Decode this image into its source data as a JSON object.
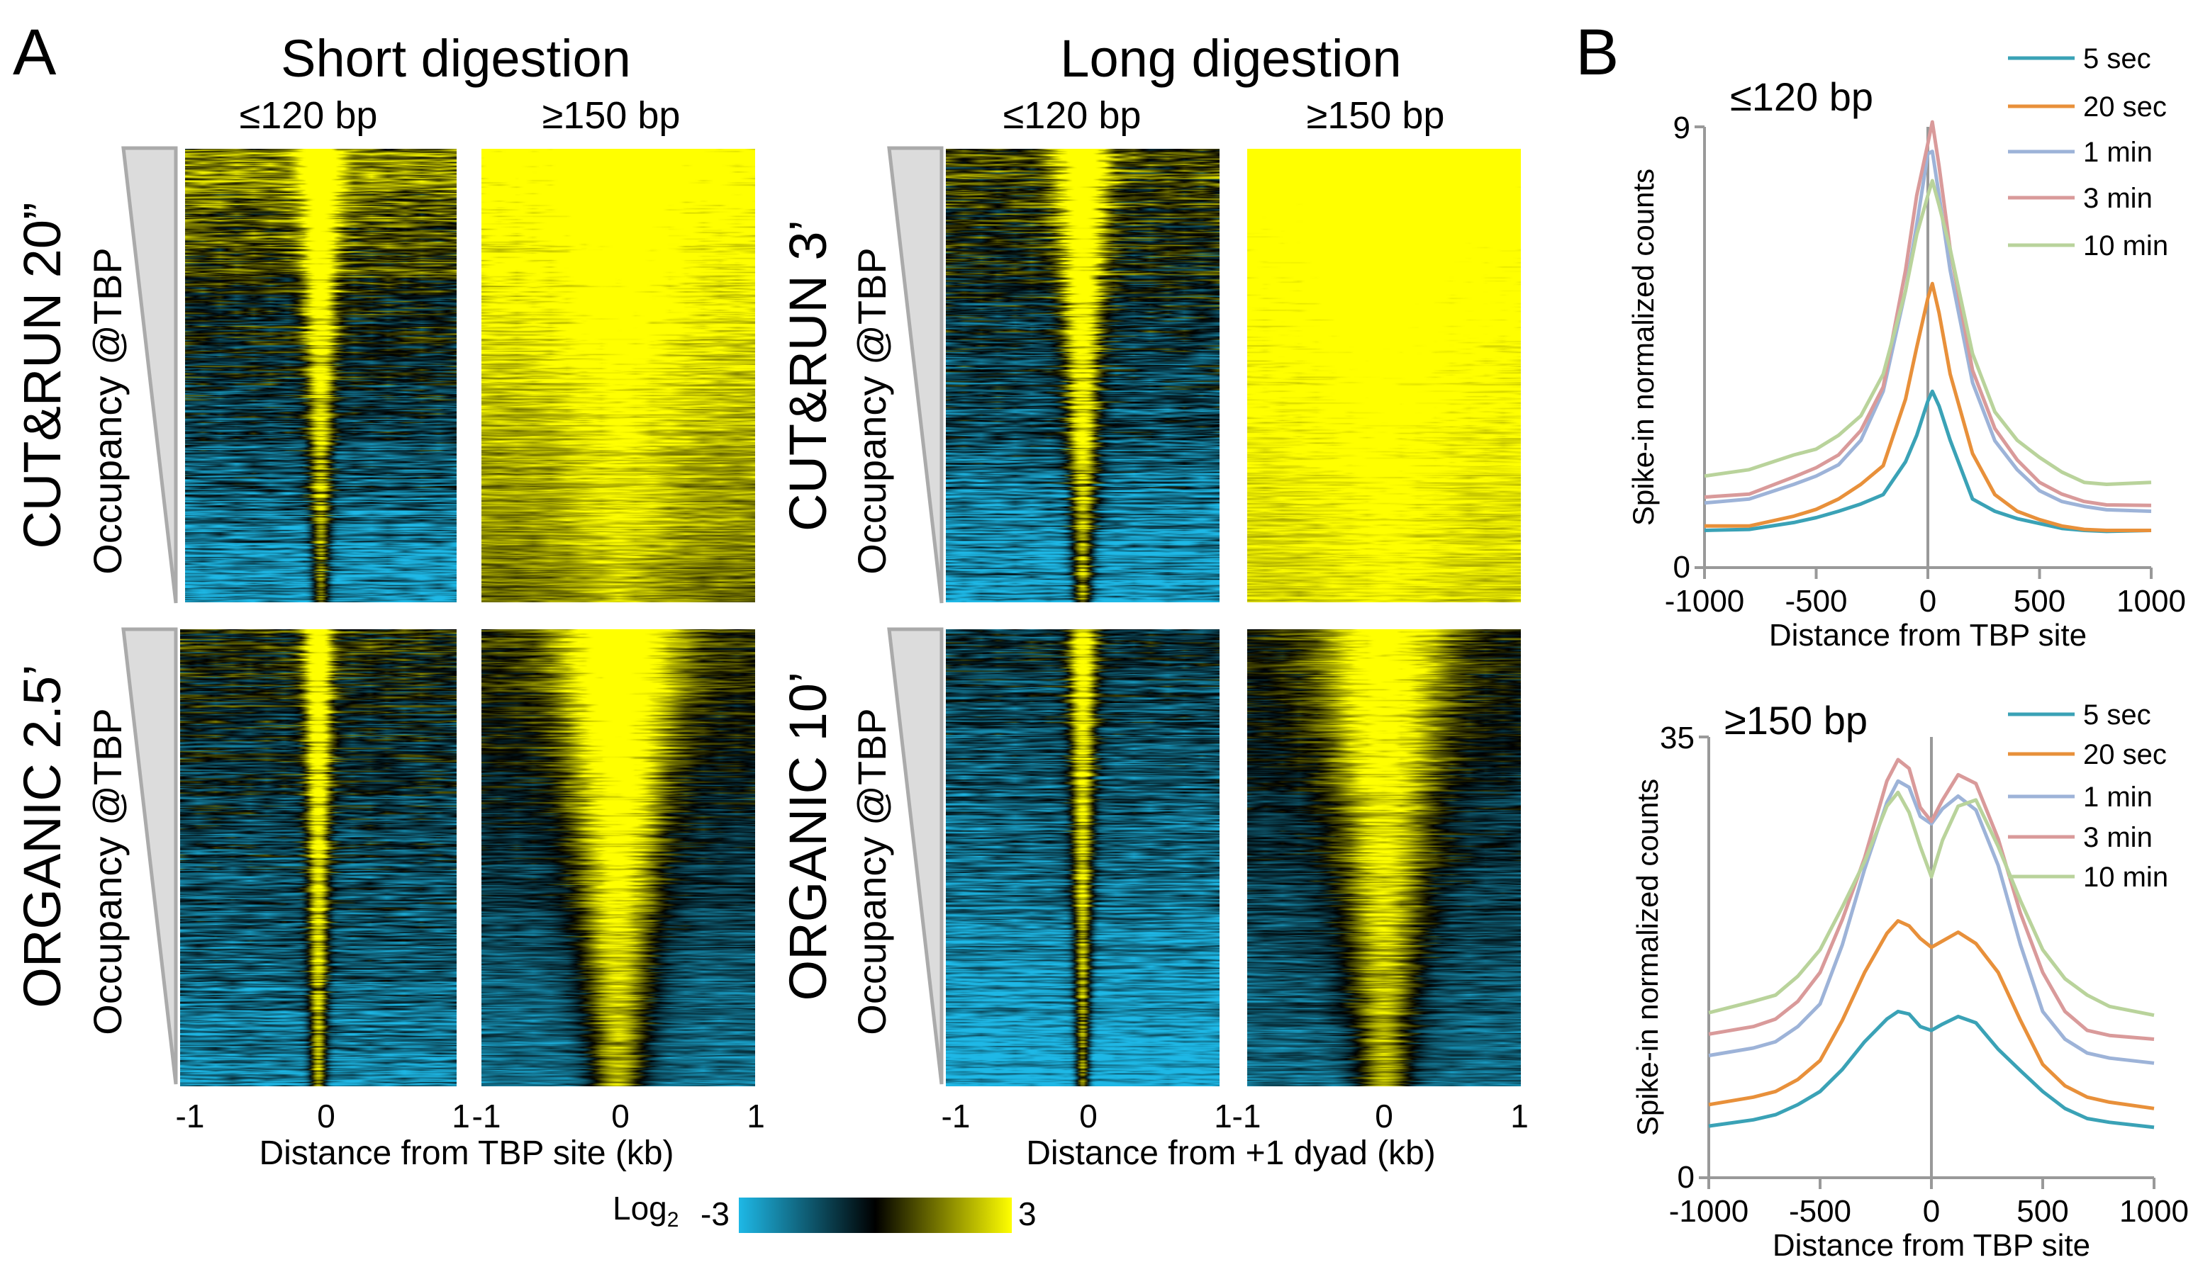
{
  "panel_a": {
    "letter": "A",
    "groups": [
      {
        "title": "Short digestion",
        "cols": [
          "≤120 bp",
          "≥150 bp"
        ],
        "axis_title": "Distance from TBP site (kb)"
      },
      {
        "title": "Long digestion",
        "cols": [
          "≤120 bp",
          "≥150 bp"
        ],
        "axis_title": "Distance from +1 dyad (kb)"
      }
    ],
    "rows": [
      {
        "left_label": "CUT&RUN 20”",
        "left_sub": "Occupancy @TBP",
        "right_label": "CUT&RUN 3’",
        "right_sub": "Occupancy @TBP"
      },
      {
        "left_label": "ORGANIC 2.5’",
        "left_sub": "Occupancy @TBP",
        "right_label": "ORGANIC 10’",
        "right_sub": "Occupancy @TBP"
      }
    ],
    "x_ticks": [
      "-1",
      "0",
      "1"
    ],
    "colorbar": {
      "label": "Log",
      "label_sub": "2",
      "min_label": "-3",
      "max_label": "3",
      "range": [
        -3,
        3
      ],
      "colors": {
        "low": "#1eb8e6",
        "mid": "#000000",
        "high": "#ffff00"
      }
    }
  },
  "panel_b": {
    "letter": "B"
  },
  "chart_data": [
    {
      "type": "line",
      "title": "≤120 bp",
      "xlabel": "Distance from TBP site",
      "ylabel": "Spike-in normalized counts",
      "xlim": [
        -1000,
        1000
      ],
      "ylim": [
        0,
        9
      ],
      "x_ticks": [
        "-1000",
        "-500",
        "0",
        "500",
        "1000"
      ],
      "y_ticks": [
        "0",
        "9"
      ],
      "legend_position": "top-right",
      "grid": false,
      "x": [
        -1000,
        -800,
        -600,
        -500,
        -400,
        -300,
        -200,
        -100,
        -50,
        0,
        20,
        50,
        100,
        200,
        300,
        400,
        500,
        600,
        700,
        800,
        1000
      ],
      "series": [
        {
          "name": "5 sec",
          "color": "#3aa2b6",
          "values": [
            0.76,
            0.78,
            0.92,
            1.02,
            1.15,
            1.3,
            1.49,
            2.16,
            2.7,
            3.4,
            3.6,
            3.3,
            2.6,
            1.4,
            1.15,
            1.0,
            0.9,
            0.8,
            0.76,
            0.74,
            0.76
          ]
        },
        {
          "name": "20 sec",
          "color": "#e8903a",
          "values": [
            0.85,
            0.85,
            1.05,
            1.19,
            1.4,
            1.7,
            2.08,
            3.44,
            4.5,
            5.5,
            5.8,
            5.2,
            3.95,
            2.33,
            1.49,
            1.15,
            0.98,
            0.85,
            0.78,
            0.76,
            0.76
          ]
        },
        {
          "name": "1 min",
          "color": "#9db3d8",
          "values": [
            1.32,
            1.4,
            1.7,
            1.87,
            2.1,
            2.6,
            3.6,
            5.65,
            7.0,
            8.45,
            8.5,
            7.6,
            6.07,
            3.78,
            2.59,
            2.0,
            1.57,
            1.35,
            1.25,
            1.18,
            1.15
          ]
        },
        {
          "name": "3 min",
          "color": "#d99a9a",
          "values": [
            1.44,
            1.5,
            1.85,
            2.04,
            2.3,
            2.8,
            3.69,
            6.07,
            7.6,
            8.66,
            9.1,
            8.2,
            6.5,
            4.03,
            2.84,
            2.2,
            1.74,
            1.5,
            1.35,
            1.28,
            1.27
          ]
        },
        {
          "name": "10 min",
          "color": "#b9d39b",
          "values": [
            1.87,
            2.0,
            2.3,
            2.42,
            2.7,
            3.1,
            3.95,
            5.65,
            6.8,
            7.6,
            7.9,
            7.4,
            6.5,
            4.37,
            3.18,
            2.6,
            2.25,
            1.95,
            1.74,
            1.7,
            1.74
          ]
        }
      ]
    },
    {
      "type": "line",
      "title": "≥150 bp",
      "xlabel": "Distance from TBP site",
      "ylabel": "Spike-in normalized counts",
      "xlim": [
        -1000,
        1000
      ],
      "ylim": [
        0,
        35
      ],
      "x_ticks": [
        "-1000",
        "-500",
        "0",
        "500",
        "1000"
      ],
      "y_ticks": [
        "0",
        "35"
      ],
      "legend_position": "top-right",
      "grid": false,
      "x": [
        -1000,
        -800,
        -700,
        -600,
        -500,
        -400,
        -300,
        -200,
        -150,
        -100,
        -50,
        0,
        50,
        120,
        200,
        300,
        400,
        500,
        600,
        700,
        800,
        1000
      ],
      "series": [
        {
          "name": "5 sec",
          "color": "#3aa2b6",
          "values": [
            4.1,
            4.6,
            5.0,
            5.8,
            6.85,
            8.6,
            10.8,
            12.6,
            13.2,
            13.0,
            12.0,
            11.7,
            12.2,
            12.8,
            12.3,
            10.2,
            8.5,
            6.85,
            5.5,
            4.7,
            4.4,
            4.0
          ]
        },
        {
          "name": "20 sec",
          "color": "#e8903a",
          "values": [
            5.8,
            6.4,
            6.85,
            7.8,
            9.3,
            12.5,
            16.3,
            19.4,
            20.4,
            20.0,
            19.0,
            18.3,
            18.8,
            19.5,
            18.6,
            16.3,
            12.5,
            9.0,
            7.3,
            6.4,
            6.0,
            5.5
          ]
        },
        {
          "name": "1 min",
          "color": "#9db3d8",
          "values": [
            9.7,
            10.3,
            10.8,
            12.0,
            13.8,
            18.5,
            24.5,
            29.8,
            31.5,
            31.0,
            28.7,
            28.1,
            29.3,
            30.3,
            29.2,
            24.8,
            18.5,
            13.2,
            11.0,
            9.9,
            9.5,
            9.1
          ]
        },
        {
          "name": "3 min",
          "color": "#d99a9a",
          "values": [
            11.4,
            12.0,
            12.6,
            14.0,
            16.3,
            20.5,
            25.4,
            31.5,
            33.2,
            32.5,
            29.4,
            28.3,
            30.0,
            32.0,
            31.3,
            26.9,
            21.0,
            16.3,
            13.2,
            11.7,
            11.3,
            11.0
          ]
        },
        {
          "name": "10 min",
          "color": "#b9d39b",
          "values": [
            13.1,
            14.0,
            14.5,
            16.0,
            18.1,
            21.5,
            25.1,
            29.5,
            30.6,
            29.0,
            26.3,
            23.9,
            26.8,
            29.5,
            30.0,
            26.3,
            22.0,
            18.1,
            15.8,
            14.5,
            13.6,
            12.9
          ]
        }
      ]
    }
  ]
}
